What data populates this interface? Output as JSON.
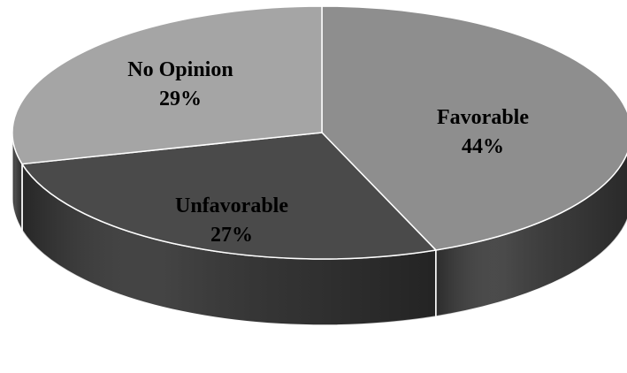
{
  "chart_data": {
    "type": "pie",
    "style": "3d",
    "start_angle_deg": 0,
    "direction": "clockwise",
    "slices": [
      {
        "label": "Favorable",
        "percent_text": "44%",
        "value": 44,
        "color": "#8e8e8e",
        "side_color": "#3a3a3a"
      },
      {
        "label": "Unfavorable",
        "percent_text": "27%",
        "value": 27,
        "color": "#4a4a4a",
        "side_color": "#333333"
      },
      {
        "label": "No Opinion",
        "percent_text": "29%",
        "value": 29,
        "color": "#a5a5a5",
        "side_color": "#3c3c3c"
      }
    ],
    "title": "",
    "legend": "none",
    "outline_color": "#ffffff"
  }
}
